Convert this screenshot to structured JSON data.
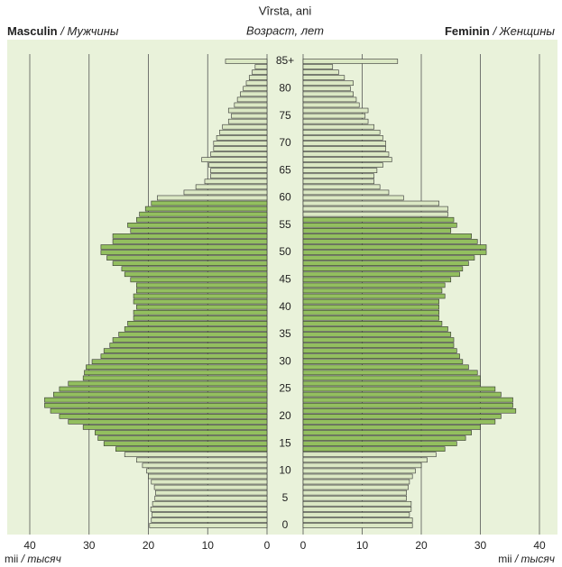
{
  "chart_data": {
    "type": "pyramid",
    "title": "Vîrsta, ani",
    "subtitle": "Возраст, лет",
    "categories": [
      "0",
      null,
      null,
      null,
      null,
      "5",
      null,
      null,
      null,
      null,
      "10",
      null,
      null,
      null,
      null,
      "15",
      null,
      null,
      null,
      null,
      "20",
      null,
      null,
      null,
      null,
      "25",
      null,
      null,
      null,
      null,
      "30",
      null,
      null,
      null,
      null,
      "35",
      null,
      null,
      null,
      null,
      "40",
      null,
      null,
      null,
      null,
      "45",
      null,
      null,
      null,
      null,
      "50",
      null,
      null,
      null,
      null,
      "55",
      null,
      null,
      null,
      null,
      "60",
      null,
      null,
      null,
      null,
      "65",
      null,
      null,
      null,
      null,
      "70",
      null,
      null,
      null,
      null,
      "75",
      null,
      null,
      null,
      null,
      "80",
      null,
      null,
      null,
      null,
      "85+"
    ],
    "xlim": [
      0,
      40
    ],
    "xticks": [
      0,
      10,
      20,
      30,
      40
    ],
    "x_label": "mii",
    "x_label_ru": "/ тысяч",
    "grid": true,
    "background": "#e9f2da",
    "series": [
      {
        "name": "Masculin",
        "name_ru": "/ Мужчины",
        "side": "left",
        "values": [
          19.8,
          19.5,
          19.4,
          19.6,
          19.3,
          18.9,
          18.8,
          19.0,
          19.5,
          20.0,
          20.3,
          21.0,
          22.0,
          24.0,
          25.5,
          27.5,
          28.5,
          29.0,
          31.0,
          33.5,
          35.0,
          36.5,
          37.5,
          37.5,
          36.0,
          35.0,
          33.5,
          31.0,
          30.8,
          30.5,
          29.5,
          28.0,
          27.5,
          26.5,
          26.0,
          25.0,
          24.0,
          23.5,
          22.5,
          22.5,
          22.0,
          22.5,
          22.5,
          22.0,
          22.0,
          23.0,
          24.0,
          24.5,
          26.0,
          27.0,
          28.0,
          28.0,
          26.0,
          26.0,
          23.0,
          23.5,
          22.0,
          21.5,
          20.5,
          19.5,
          18.5,
          14.0,
          12.0,
          10.5,
          9.5,
          9.5,
          9.8,
          11.0,
          9.5,
          9.0,
          9.0,
          8.5,
          8.0,
          7.5,
          6.5,
          6.0,
          6.5,
          5.5,
          5.0,
          4.5,
          4.0,
          3.5,
          3.0,
          2.5,
          2.0,
          7.0
        ],
        "colors": [
          "#dbe8c4",
          "#dbe8c4",
          "#dbe8c4",
          "#dbe8c4",
          "#dbe8c4",
          "#dbe8c4",
          "#dbe8c4",
          "#dbe8c4",
          "#dbe8c4",
          "#dbe8c4",
          "#dbe8c4",
          "#dbe8c4",
          "#dbe8c4",
          "#dbe8c4",
          "#93bf5f",
          "#93bf5f",
          "#93bf5f",
          "#93bf5f",
          "#93bf5f",
          "#93bf5f",
          "#93bf5f",
          "#93bf5f",
          "#93bf5f",
          "#93bf5f",
          "#93bf5f",
          "#93bf5f",
          "#93bf5f",
          "#93bf5f",
          "#93bf5f",
          "#93bf5f",
          "#93bf5f",
          "#93bf5f",
          "#93bf5f",
          "#93bf5f",
          "#93bf5f",
          "#93bf5f",
          "#93bf5f",
          "#93bf5f",
          "#93bf5f",
          "#93bf5f",
          "#93bf5f",
          "#93bf5f",
          "#93bf5f",
          "#93bf5f",
          "#93bf5f",
          "#93bf5f",
          "#93bf5f",
          "#93bf5f",
          "#93bf5f",
          "#93bf5f",
          "#93bf5f",
          "#93bf5f",
          "#93bf5f",
          "#93bf5f",
          "#93bf5f",
          "#93bf5f",
          "#93bf5f",
          "#93bf5f",
          "#93bf5f",
          "#93bf5f",
          "#dbe8c4",
          "#dbe8c4",
          "#dbe8c4",
          "#dbe8c4",
          "#dbe8c4",
          "#dbe8c4",
          "#dbe8c4",
          "#dbe8c4",
          "#dbe8c4",
          "#dbe8c4",
          "#dbe8c4",
          "#dbe8c4",
          "#dbe8c4",
          "#dbe8c4",
          "#dbe8c4",
          "#dbe8c4",
          "#dbe8c4",
          "#dbe8c4",
          "#dbe8c4",
          "#dbe8c4",
          "#dbe8c4",
          "#dbe8c4",
          "#dbe8c4",
          "#dbe8c4",
          "#dbe8c4",
          "#dbe8c4"
        ]
      },
      {
        "name": "Feminin",
        "name_ru": "/ Женщины",
        "side": "right",
        "values": [
          18.5,
          18.5,
          18.0,
          18.3,
          18.3,
          17.5,
          17.5,
          17.8,
          18.0,
          18.5,
          19.0,
          20.0,
          21.0,
          22.5,
          24.0,
          26.0,
          27.5,
          28.5,
          30.0,
          32.5,
          33.5,
          36.0,
          35.5,
          35.5,
          33.5,
          32.5,
          30.0,
          30.0,
          29.5,
          28.0,
          27.0,
          26.5,
          26.0,
          25.5,
          25.5,
          25.0,
          24.5,
          23.5,
          23.0,
          23.0,
          23.0,
          23.0,
          24.0,
          23.5,
          24.0,
          25.0,
          26.5,
          27.0,
          28.0,
          29.0,
          31.0,
          31.0,
          29.5,
          28.5,
          25.0,
          26.0,
          25.5,
          24.5,
          24.5,
          23.0,
          17.0,
          14.5,
          13.0,
          12.0,
          12.0,
          12.5,
          13.5,
          15.0,
          14.5,
          14.0,
          14.0,
          13.5,
          13.0,
          12.0,
          11.0,
          10.5,
          11.0,
          9.5,
          9.0,
          8.5,
          8.0,
          8.5,
          7.0,
          6.0,
          5.0,
          16.0
        ],
        "colors": [
          "#dbe8c4",
          "#dbe8c4",
          "#dbe8c4",
          "#dbe8c4",
          "#dbe8c4",
          "#dbe8c4",
          "#dbe8c4",
          "#dbe8c4",
          "#dbe8c4",
          "#dbe8c4",
          "#dbe8c4",
          "#dbe8c4",
          "#dbe8c4",
          "#dbe8c4",
          "#93bf5f",
          "#93bf5f",
          "#93bf5f",
          "#93bf5f",
          "#93bf5f",
          "#93bf5f",
          "#93bf5f",
          "#93bf5f",
          "#93bf5f",
          "#93bf5f",
          "#93bf5f",
          "#93bf5f",
          "#93bf5f",
          "#93bf5f",
          "#93bf5f",
          "#93bf5f",
          "#93bf5f",
          "#93bf5f",
          "#93bf5f",
          "#93bf5f",
          "#93bf5f",
          "#93bf5f",
          "#93bf5f",
          "#93bf5f",
          "#93bf5f",
          "#93bf5f",
          "#93bf5f",
          "#93bf5f",
          "#93bf5f",
          "#93bf5f",
          "#93bf5f",
          "#93bf5f",
          "#93bf5f",
          "#93bf5f",
          "#93bf5f",
          "#93bf5f",
          "#93bf5f",
          "#93bf5f",
          "#93bf5f",
          "#93bf5f",
          "#93bf5f",
          "#93bf5f",
          "#93bf5f",
          "#dbe8c4",
          "#dbe8c4",
          "#dbe8c4",
          "#dbe8c4",
          "#dbe8c4",
          "#dbe8c4",
          "#dbe8c4",
          "#dbe8c4",
          "#dbe8c4",
          "#dbe8c4",
          "#dbe8c4",
          "#dbe8c4",
          "#dbe8c4",
          "#dbe8c4",
          "#dbe8c4",
          "#dbe8c4",
          "#dbe8c4",
          "#dbe8c4",
          "#dbe8c4",
          "#dbe8c4",
          "#dbe8c4",
          "#dbe8c4",
          "#dbe8c4",
          "#dbe8c4",
          "#dbe8c4",
          "#dbe8c4",
          "#dbe8c4",
          "#dbe8c4",
          "#dbe8c4"
        ]
      }
    ]
  }
}
